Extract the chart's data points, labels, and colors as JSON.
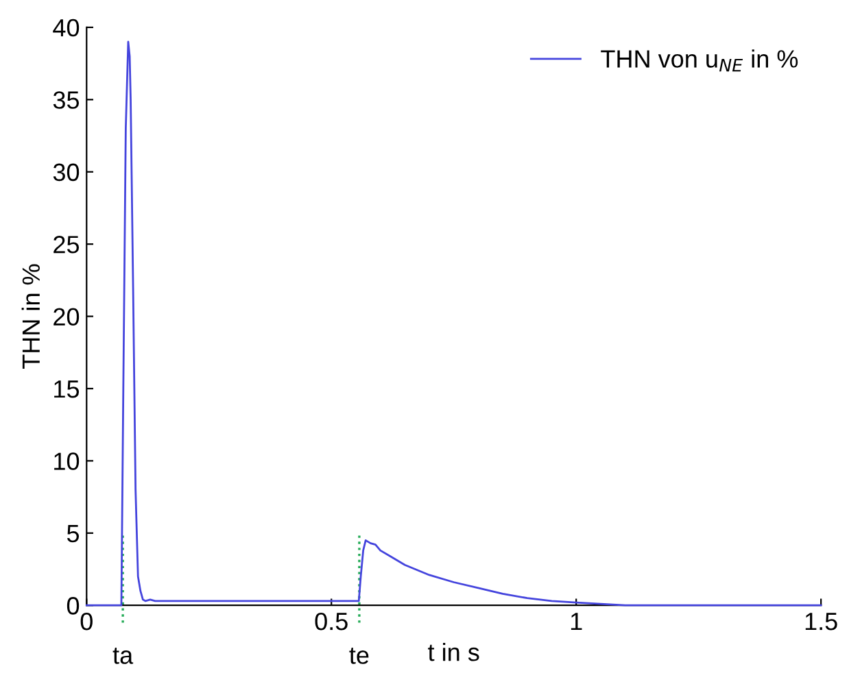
{
  "chart_data": {
    "type": "line",
    "xlabel": "t in s",
    "ylabel": "THN in %",
    "series": [
      {
        "name": "THN von u$_{NE}$ in %",
        "color": "#4444dd",
        "x": [
          0,
          0.071,
          0.075,
          0.08,
          0.085,
          0.088,
          0.09,
          0.095,
          0.1,
          0.105,
          0.11,
          0.115,
          0.12,
          0.13,
          0.14,
          0.2,
          0.3,
          0.4,
          0.5,
          0.556,
          0.56,
          0.565,
          0.57,
          0.58,
          0.59,
          0.6,
          0.62,
          0.65,
          0.7,
          0.75,
          0.8,
          0.85,
          0.9,
          0.95,
          1.0,
          1.05,
          1.1,
          1.2,
          1.3,
          1.5
        ],
        "values": [
          0,
          0,
          15,
          33,
          39,
          38,
          35,
          22,
          8,
          2,
          1,
          0.4,
          0.3,
          0.4,
          0.3,
          0.3,
          0.3,
          0.3,
          0.3,
          0.3,
          2,
          3.8,
          4.5,
          4.3,
          4.2,
          3.8,
          3.4,
          2.8,
          2.1,
          1.6,
          1.2,
          0.8,
          0.5,
          0.3,
          0.2,
          0.1,
          0,
          0,
          0,
          0
        ]
      }
    ],
    "xlim": [
      0,
      1.5
    ],
    "xticks": [
      0,
      0.5,
      1,
      1.5
    ],
    "ylim": [
      0,
      40
    ],
    "yticks": [
      0,
      5,
      10,
      15,
      20,
      25,
      30,
      35,
      40
    ],
    "ref_lines": [
      {
        "axis": "x",
        "value": 0.074,
        "label": "ta",
        "color": "#22aa55",
        "line_style": "dotted"
      },
      {
        "axis": "x",
        "value": 0.557,
        "label": "te",
        "color": "#22aa55",
        "line_style": "dotted"
      }
    ],
    "legend": "top right",
    "grid": false,
    "marker": "none",
    "line_style": "solid"
  }
}
